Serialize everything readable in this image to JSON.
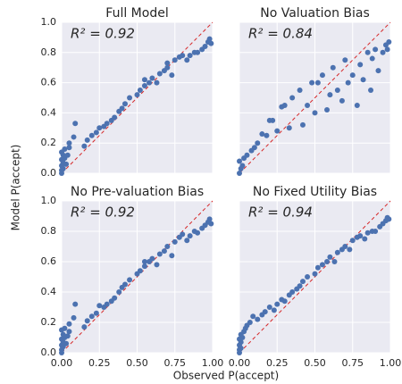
{
  "xlabel": "Observed P(accept)",
  "ylabel": "Model P(accept)",
  "chart_data": [
    {
      "type": "scatter",
      "title": "Full Model",
      "annotation": "R² = 0.92",
      "color": "#4c72b0",
      "grid": true,
      "xlim": [
        0,
        1
      ],
      "ylim": [
        0,
        1
      ],
      "xticks": [
        0,
        0.25,
        0.5,
        0.75,
        1
      ],
      "yticks": [
        {
          "value": 0,
          "label": "0.0"
        },
        {
          "value": 0.2,
          "label": "0.2"
        },
        {
          "value": 0.4,
          "label": "0.4"
        },
        {
          "value": 0.6,
          "label": "0.6"
        },
        {
          "value": 0.8,
          "label": "0.8"
        },
        {
          "value": 1,
          "label": "1.0"
        }
      ],
      "x": [
        0.0,
        0.0,
        0.01,
        0.0,
        0.01,
        0.0,
        0.02,
        0.01,
        0.0,
        0.02,
        0.05,
        0.05,
        0.08,
        0.09,
        0.04,
        0.03,
        0.15,
        0.17,
        0.2,
        0.23,
        0.25,
        0.28,
        0.3,
        0.33,
        0.35,
        0.38,
        0.4,
        0.42,
        0.45,
        0.5,
        0.52,
        0.55,
        0.58,
        0.6,
        0.63,
        0.65,
        0.68,
        0.7,
        0.73,
        0.75,
        0.78,
        0.8,
        0.83,
        0.85,
        0.88,
        0.9,
        0.93,
        0.95,
        0.97,
        0.98,
        0.99,
        0.55,
        0.7
      ],
      "y": [
        0.0,
        0.02,
        0.03,
        0.05,
        0.07,
        0.09,
        0.1,
        0.12,
        0.14,
        0.16,
        0.17,
        0.2,
        0.24,
        0.33,
        0.12,
        0.06,
        0.18,
        0.22,
        0.25,
        0.27,
        0.3,
        0.31,
        0.33,
        0.35,
        0.37,
        0.41,
        0.43,
        0.46,
        0.5,
        0.52,
        0.55,
        0.58,
        0.6,
        0.63,
        0.6,
        0.66,
        0.68,
        0.7,
        0.65,
        0.75,
        0.77,
        0.78,
        0.75,
        0.78,
        0.8,
        0.8,
        0.82,
        0.84,
        0.87,
        0.89,
        0.86,
        0.62,
        0.73
      ]
    },
    {
      "type": "scatter",
      "title": "No Valuation Bias",
      "annotation": "R² = 0.84",
      "color": "#4c72b0",
      "grid": true,
      "xlim": [
        0,
        1
      ],
      "ylim": [
        0,
        1
      ],
      "xticks": [
        0,
        0.25,
        0.5,
        0.75,
        1
      ],
      "yticks": [
        0,
        0.2,
        0.4,
        0.6,
        0.8,
        1
      ],
      "x": [
        0.0,
        0.01,
        0.02,
        0.0,
        0.03,
        0.05,
        0.08,
        0.1,
        0.12,
        0.15,
        0.18,
        0.2,
        0.22,
        0.25,
        0.28,
        0.3,
        0.33,
        0.35,
        0.4,
        0.42,
        0.45,
        0.48,
        0.5,
        0.52,
        0.55,
        0.58,
        0.6,
        0.62,
        0.65,
        0.68,
        0.7,
        0.72,
        0.75,
        0.78,
        0.8,
        0.82,
        0.85,
        0.87,
        0.88,
        0.9,
        0.92,
        0.95,
        0.97,
        0.99,
        0.98
      ],
      "y": [
        0.0,
        0.03,
        0.05,
        0.08,
        0.1,
        0.12,
        0.15,
        0.17,
        0.2,
        0.26,
        0.25,
        0.35,
        0.35,
        0.28,
        0.44,
        0.45,
        0.3,
        0.5,
        0.55,
        0.32,
        0.45,
        0.6,
        0.4,
        0.6,
        0.65,
        0.42,
        0.52,
        0.7,
        0.55,
        0.48,
        0.75,
        0.6,
        0.65,
        0.45,
        0.72,
        0.62,
        0.8,
        0.55,
        0.76,
        0.82,
        0.68,
        0.8,
        0.85,
        0.87,
        0.82
      ]
    },
    {
      "type": "scatter",
      "title": "No Pre-valuation Bias",
      "annotation": "R² = 0.92",
      "color": "#4c72b0",
      "grid": true,
      "xlim": [
        0,
        1
      ],
      "ylim": [
        0,
        1
      ],
      "xticks": [
        {
          "value": 0,
          "label": "0.00"
        },
        {
          "value": 0.25,
          "label": "0.25"
        },
        {
          "value": 0.5,
          "label": "0.50"
        },
        {
          "value": 0.75,
          "label": "0.75"
        },
        {
          "value": 1,
          "label": "1.00"
        }
      ],
      "yticks": [
        {
          "value": 0,
          "label": "0.0"
        },
        {
          "value": 0.2,
          "label": "0.2"
        },
        {
          "value": 0.4,
          "label": "0.4"
        },
        {
          "value": 0.6,
          "label": "0.6"
        },
        {
          "value": 0.8,
          "label": "0.8"
        },
        {
          "value": 1,
          "label": "1.0"
        }
      ],
      "x": [
        0.0,
        0.0,
        0.01,
        0.0,
        0.01,
        0.0,
        0.02,
        0.01,
        0.0,
        0.02,
        0.05,
        0.05,
        0.08,
        0.09,
        0.04,
        0.03,
        0.15,
        0.17,
        0.2,
        0.23,
        0.25,
        0.28,
        0.3,
        0.33,
        0.35,
        0.38,
        0.4,
        0.42,
        0.45,
        0.5,
        0.52,
        0.55,
        0.58,
        0.6,
        0.63,
        0.65,
        0.68,
        0.7,
        0.73,
        0.75,
        0.78,
        0.8,
        0.83,
        0.85,
        0.88,
        0.9,
        0.93,
        0.95,
        0.97,
        0.98,
        0.99,
        0.55
      ],
      "y": [
        0.0,
        0.02,
        0.04,
        0.05,
        0.07,
        0.09,
        0.1,
        0.12,
        0.15,
        0.16,
        0.14,
        0.19,
        0.23,
        0.32,
        0.11,
        0.06,
        0.17,
        0.21,
        0.24,
        0.26,
        0.31,
        0.3,
        0.32,
        0.34,
        0.36,
        0.4,
        0.43,
        0.45,
        0.48,
        0.52,
        0.54,
        0.57,
        0.6,
        0.62,
        0.58,
        0.65,
        0.67,
        0.7,
        0.64,
        0.73,
        0.76,
        0.78,
        0.74,
        0.77,
        0.8,
        0.79,
        0.82,
        0.84,
        0.86,
        0.88,
        0.85,
        0.6
      ]
    },
    {
      "type": "scatter",
      "title": "No Fixed Utility Bias",
      "annotation": "R² = 0.94",
      "color": "#4c72b0",
      "grid": true,
      "xlim": [
        0,
        1
      ],
      "ylim": [
        0,
        1
      ],
      "xticks": [
        {
          "value": 0,
          "label": "0.00"
        },
        {
          "value": 0.25,
          "label": "0.25"
        },
        {
          "value": 0.5,
          "label": "0.50"
        },
        {
          "value": 0.75,
          "label": "0.75"
        },
        {
          "value": 1,
          "label": "1.00"
        }
      ],
      "yticks": [
        0,
        0.2,
        0.4,
        0.6,
        0.8,
        1
      ],
      "x": [
        0.0,
        0.0,
        0.01,
        0.0,
        0.01,
        0.0,
        0.02,
        0.01,
        0.03,
        0.04,
        0.05,
        0.07,
        0.09,
        0.12,
        0.15,
        0.17,
        0.2,
        0.23,
        0.25,
        0.28,
        0.3,
        0.33,
        0.35,
        0.38,
        0.4,
        0.42,
        0.45,
        0.5,
        0.52,
        0.55,
        0.58,
        0.6,
        0.63,
        0.65,
        0.68,
        0.7,
        0.73,
        0.75,
        0.78,
        0.8,
        0.83,
        0.85,
        0.88,
        0.9,
        0.93,
        0.95,
        0.97,
        0.98,
        0.99
      ],
      "y": [
        0.0,
        0.02,
        0.03,
        0.05,
        0.07,
        0.09,
        0.1,
        0.12,
        0.14,
        0.16,
        0.18,
        0.2,
        0.24,
        0.22,
        0.25,
        0.27,
        0.3,
        0.28,
        0.32,
        0.35,
        0.34,
        0.38,
        0.4,
        0.42,
        0.44,
        0.47,
        0.5,
        0.52,
        0.56,
        0.58,
        0.6,
        0.63,
        0.6,
        0.66,
        0.68,
        0.7,
        0.68,
        0.74,
        0.76,
        0.77,
        0.75,
        0.79,
        0.8,
        0.8,
        0.83,
        0.85,
        0.87,
        0.89,
        0.88
      ]
    }
  ]
}
